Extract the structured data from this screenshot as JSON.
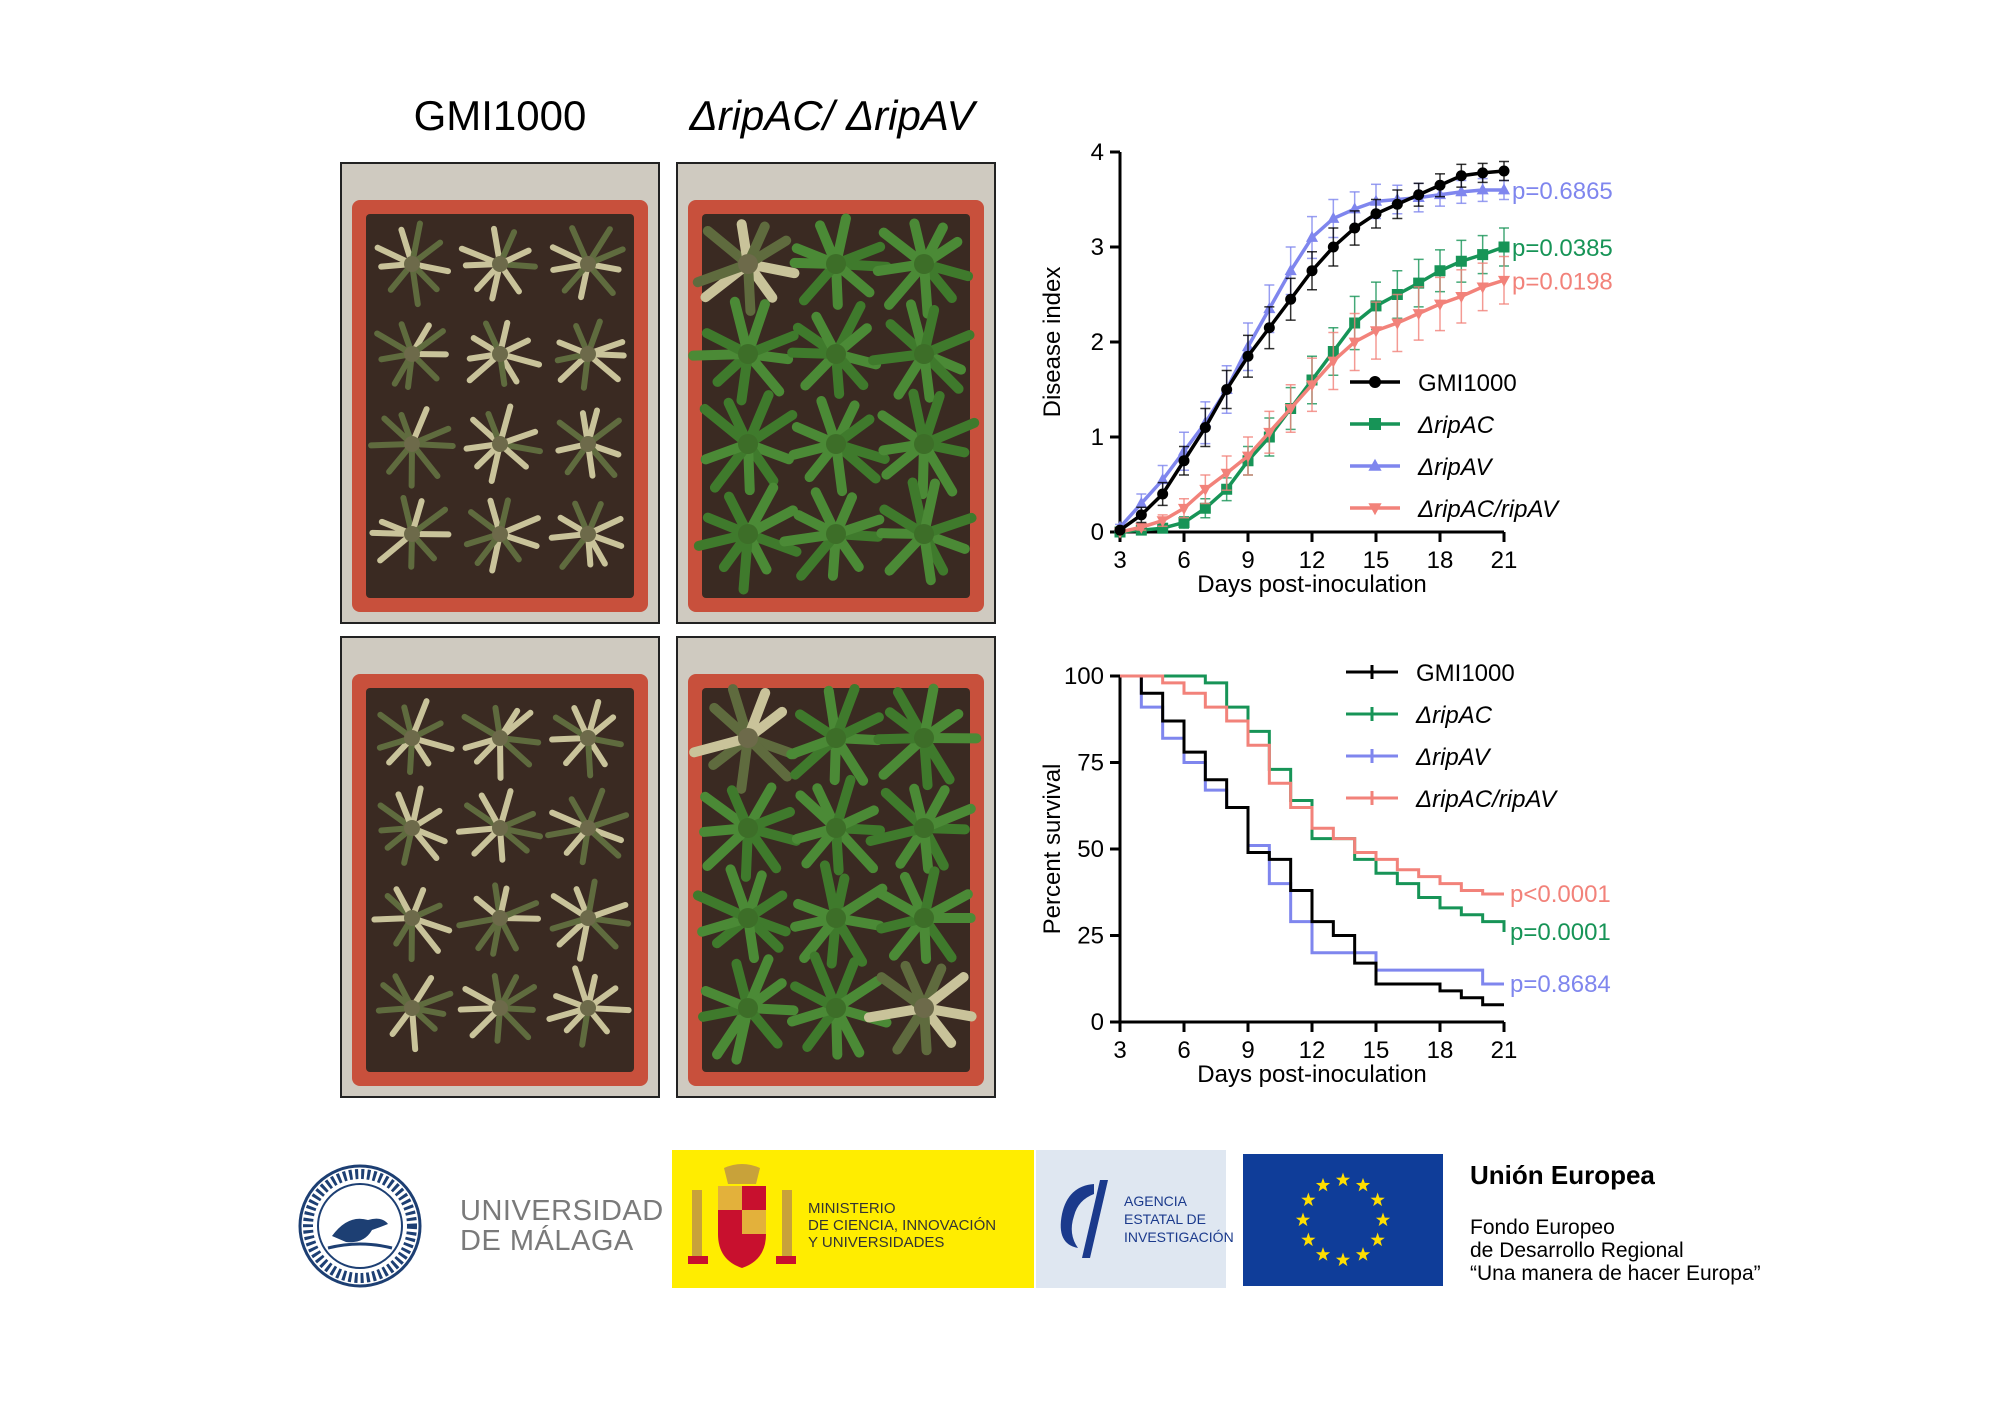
{
  "column_titles": {
    "left": "GMI1000",
    "right": "ΔripAC/ ΔripAV"
  },
  "photos": [
    {
      "condition": "GMI1000",
      "row": "top",
      "label": "GMI1000"
    },
    {
      "condition": "ΔripAC/ ΔripAV",
      "row": "top",
      "label": "ΔripAC/ ΔripAV"
    },
    {
      "condition": "GMI1000",
      "row": "bottom",
      "label": "GMI1000"
    },
    {
      "condition": "ΔripAC/ ΔripAV",
      "row": "bottom",
      "label": "ΔripAC/ ΔripAV"
    }
  ],
  "chart_data": [
    {
      "type": "line",
      "xlabel": "Days post-inoculation",
      "ylabel": "Disease index",
      "xlim": [
        3,
        21
      ],
      "ylim": [
        0,
        4
      ],
      "xticks": [
        "3",
        "6",
        "9",
        "12",
        "15",
        "18",
        "21"
      ],
      "yticks": [
        "0",
        "1",
        "2",
        "3",
        "4"
      ],
      "legend_position": "bottom-right",
      "x": [
        3,
        4,
        5,
        6,
        7,
        8,
        9,
        10,
        11,
        12,
        13,
        14,
        15,
        16,
        17,
        18,
        19,
        20,
        21
      ],
      "series": [
        {
          "name": "GMI1000",
          "color": "#000000",
          "marker": "circle",
          "values": [
            0.02,
            0.18,
            0.4,
            0.75,
            1.1,
            1.5,
            1.85,
            2.15,
            2.45,
            2.75,
            3.0,
            3.2,
            3.35,
            3.45,
            3.55,
            3.65,
            3.75,
            3.78,
            3.8
          ],
          "error": [
            0.02,
            0.08,
            0.12,
            0.15,
            0.2,
            0.2,
            0.22,
            0.22,
            0.22,
            0.2,
            0.2,
            0.18,
            0.15,
            0.15,
            0.12,
            0.12,
            0.12,
            0.1,
            0.1
          ],
          "pvalue": ""
        },
        {
          "name": "ΔripAC",
          "color": "#179457",
          "marker": "square",
          "values": [
            0.0,
            0.02,
            0.04,
            0.1,
            0.25,
            0.45,
            0.75,
            1.0,
            1.3,
            1.6,
            1.9,
            2.2,
            2.38,
            2.5,
            2.62,
            2.75,
            2.85,
            2.92,
            3.0
          ],
          "error": [
            0.0,
            0.02,
            0.03,
            0.06,
            0.1,
            0.12,
            0.15,
            0.2,
            0.22,
            0.25,
            0.25,
            0.28,
            0.25,
            0.25,
            0.25,
            0.22,
            0.22,
            0.2,
            0.2
          ],
          "pvalue": "p=0.0385"
        },
        {
          "name": "ΔripAV",
          "color": "#7f86ee",
          "marker": "triangle",
          "values": [
            0.05,
            0.3,
            0.55,
            0.85,
            1.15,
            1.5,
            1.95,
            2.35,
            2.75,
            3.1,
            3.3,
            3.4,
            3.48,
            3.5,
            3.52,
            3.55,
            3.58,
            3.6,
            3.6
          ],
          "error": [
            0.03,
            0.1,
            0.15,
            0.2,
            0.22,
            0.25,
            0.25,
            0.25,
            0.25,
            0.22,
            0.2,
            0.18,
            0.18,
            0.15,
            0.15,
            0.12,
            0.12,
            0.12,
            0.1
          ],
          "pvalue": "p=0.6865"
        },
        {
          "name": "ΔripAC/ripAV",
          "color": "#f2827a",
          "marker": "triangle-down",
          "values": [
            0.0,
            0.05,
            0.12,
            0.25,
            0.45,
            0.62,
            0.8,
            1.05,
            1.3,
            1.55,
            1.8,
            2.0,
            2.12,
            2.2,
            2.3,
            2.4,
            2.48,
            2.58,
            2.65
          ],
          "error": [
            0.0,
            0.03,
            0.06,
            0.1,
            0.15,
            0.18,
            0.2,
            0.22,
            0.25,
            0.28,
            0.3,
            0.3,
            0.3,
            0.3,
            0.28,
            0.28,
            0.28,
            0.25,
            0.25
          ],
          "pvalue": "p=0.0198"
        }
      ]
    },
    {
      "type": "line",
      "subtype": "survival-step",
      "xlabel": "Days post-inoculation",
      "ylabel": "Percent survival",
      "xlim": [
        3,
        21
      ],
      "ylim": [
        0,
        100
      ],
      "xticks": [
        "3",
        "6",
        "9",
        "12",
        "15",
        "18",
        "21"
      ],
      "yticks": [
        "0",
        "25",
        "50",
        "75",
        "100"
      ],
      "legend_position": "top-right",
      "series": [
        {
          "name": "GMI1000",
          "color": "#000000",
          "x": [
            3,
            4,
            5,
            6,
            7,
            8,
            9,
            10,
            11,
            12,
            13,
            14,
            15,
            16,
            17,
            18,
            19,
            20,
            21
          ],
          "values": [
            100,
            95,
            87,
            78,
            70,
            62,
            49,
            47,
            38,
            29,
            25,
            17,
            11,
            11,
            11,
            9,
            7,
            5,
            5
          ],
          "pvalue": ""
        },
        {
          "name": "ΔripAC",
          "color": "#179457",
          "x": [
            3,
            4,
            5,
            6,
            7,
            8,
            9,
            10,
            11,
            12,
            13,
            14,
            15,
            16,
            17,
            18,
            19,
            20,
            21
          ],
          "values": [
            100,
            100,
            100,
            100,
            98,
            91,
            84,
            73,
            64,
            53,
            53,
            47,
            43,
            40,
            36,
            33,
            31,
            29,
            26
          ],
          "pvalue": "p=0.0001"
        },
        {
          "name": "ΔripAV",
          "color": "#7f86ee",
          "x": [
            3,
            4,
            5,
            6,
            7,
            8,
            9,
            10,
            11,
            12,
            13,
            14,
            15,
            16,
            17,
            18,
            19,
            20,
            21
          ],
          "values": [
            100,
            91,
            82,
            75,
            67,
            62,
            51,
            40,
            29,
            20,
            20,
            20,
            15,
            15,
            15,
            15,
            15,
            11,
            11
          ],
          "pvalue": "p=0.8684"
        },
        {
          "name": "ΔripAC/ripAV",
          "color": "#f2827a",
          "x": [
            3,
            4,
            5,
            6,
            7,
            8,
            9,
            10,
            11,
            12,
            13,
            14,
            15,
            16,
            17,
            18,
            19,
            20,
            21
          ],
          "values": [
            100,
            100,
            98,
            95,
            91,
            87,
            80,
            69,
            62,
            56,
            53,
            49,
            47,
            44,
            42,
            40,
            38,
            37,
            37
          ],
          "pvalue": "p<0.0001"
        }
      ]
    }
  ],
  "logos": {
    "uma_seal_text": "UNIVERSITAS MALACITANA",
    "uma_line1": "UNIVERSIDAD",
    "uma_line2": "DE MÁLAGA",
    "ministry_line1": "MINISTERIO",
    "ministry_line2": "DE CIENCIA, INNOVACIÓN",
    "ministry_line3": "Y UNIVERSIDADES",
    "aei_line1": "AGENCIA",
    "aei_line2": "ESTATAL DE",
    "aei_line3": "INVESTIGACIÓN",
    "eu_title": "Unión Europea",
    "eu_line1": "Fondo Europeo",
    "eu_line2": "de Desarrollo Regional",
    "eu_line3": "“Una manera de hacer Europa”",
    "eu_flag_color": "#0f3d99",
    "eu_star_color": "#ffde00",
    "ministry_color": "#ffed00"
  }
}
